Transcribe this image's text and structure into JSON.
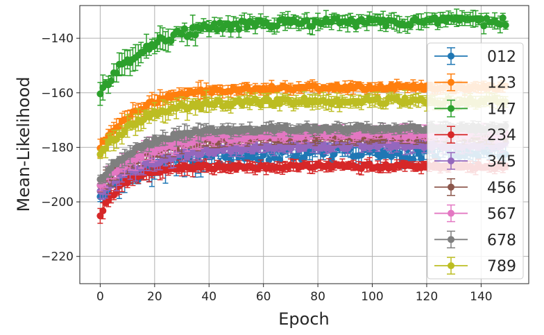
{
  "chart_data": {
    "type": "line",
    "xlabel": "Epoch",
    "ylabel": "Mean-Likelihood",
    "xlim": [
      -7.5,
      157.5
    ],
    "ylim": [
      -230,
      -128
    ],
    "xticks": [
      0,
      20,
      40,
      60,
      80,
      100,
      120,
      140
    ],
    "yticks": [
      -220,
      -200,
      -180,
      -160,
      -140
    ],
    "xtick_labels": [
      "0",
      "20",
      "40",
      "60",
      "80",
      "100",
      "120",
      "140"
    ],
    "ytick_labels": [
      "−220",
      "−200",
      "−180",
      "−160",
      "−140"
    ],
    "grid": true,
    "legend_position": "right",
    "epochs": 150,
    "series": [
      {
        "name": "012",
        "color": "#1f77b4",
        "start": -197,
        "plateau": -182,
        "rate": 0.05,
        "noise": 2.4,
        "err": 3.0
      },
      {
        "name": "123",
        "color": "#ff7f0e",
        "start": -180,
        "plateau": -158,
        "rate": 0.07,
        "noise": 0.9,
        "err": 1.8
      },
      {
        "name": "147",
        "color": "#2ca02c",
        "start": -160,
        "plateau": -134,
        "rate": 0.06,
        "noise": 1.6,
        "err": 2.5
      },
      {
        "name": "234",
        "color": "#d62728",
        "start": -205,
        "plateau": -187,
        "rate": 0.12,
        "noise": 0.9,
        "err": 1.8
      },
      {
        "name": "345",
        "color": "#9467bd",
        "start": -196,
        "plateau": -179,
        "rate": 0.05,
        "noise": 1.2,
        "err": 2.0
      },
      {
        "name": "456",
        "color": "#8c564b",
        "start": -194,
        "plateau": -176,
        "rate": 0.06,
        "noise": 1.0,
        "err": 2.0
      },
      {
        "name": "567",
        "color": "#e377c2",
        "start": -194,
        "plateau": -175,
        "rate": 0.06,
        "noise": 1.2,
        "err": 2.2
      },
      {
        "name": "678",
        "color": "#7f7f7f",
        "start": -192,
        "plateau": -173,
        "rate": 0.07,
        "noise": 0.9,
        "err": 1.8
      },
      {
        "name": "789",
        "color": "#bcbd22",
        "start": -183,
        "plateau": -163,
        "rate": 0.07,
        "noise": 1.2,
        "err": 2.2
      }
    ]
  }
}
